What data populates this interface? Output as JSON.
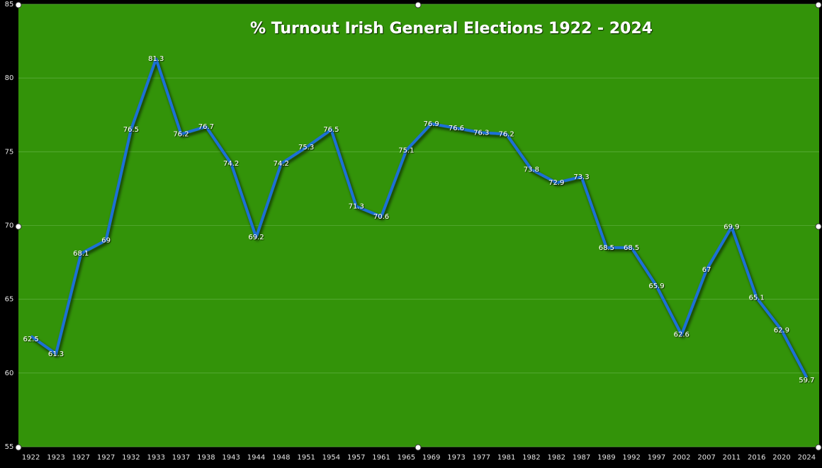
{
  "chart_data": {
    "type": "line",
    "title": "% Turnout Irish General Elections 1922 - 2024",
    "categories": [
      "1922",
      "1923",
      "1927",
      "1927",
      "1932",
      "1933",
      "1937",
      "1938",
      "1943",
      "1944",
      "1948",
      "1951",
      "1954",
      "1957",
      "1961",
      "1965",
      "1969",
      "1973",
      "1977",
      "1981",
      "1982",
      "1982",
      "1987",
      "1989",
      "1992",
      "1997",
      "2002",
      "2007",
      "2011",
      "2016",
      "2020",
      "2024"
    ],
    "values": [
      62.5,
      61.3,
      68.1,
      69,
      76.5,
      81.3,
      76.2,
      76.7,
      74.2,
      69.2,
      74.2,
      75.3,
      76.5,
      71.3,
      70.6,
      75.1,
      76.9,
      76.6,
      76.3,
      76.2,
      73.8,
      72.9,
      73.3,
      68.5,
      68.5,
      65.9,
      62.6,
      67,
      69.9,
      65.1,
      62.9,
      59.7
    ],
    "color": "#1f6fd6",
    "ylim": [
      55,
      85
    ],
    "yticks": [
      55,
      60,
      65,
      70,
      75,
      80,
      85
    ],
    "grid": true
  }
}
